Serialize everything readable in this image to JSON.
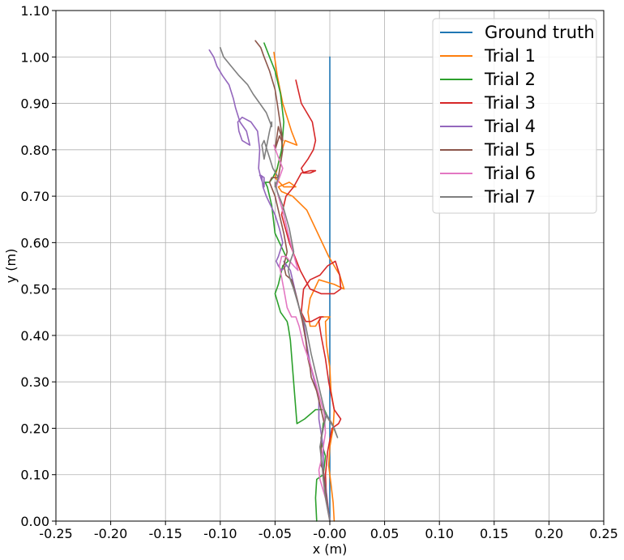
{
  "chart_data": {
    "type": "line",
    "title": "",
    "xlabel": "x (m)",
    "ylabel": "y (m)",
    "xlim": [
      -0.25,
      0.25
    ],
    "ylim": [
      0.0,
      1.1
    ],
    "xticks": [
      -0.25,
      -0.2,
      -0.15,
      -0.1,
      -0.05,
      0.0,
      0.05,
      0.1,
      0.15,
      0.2,
      0.25
    ],
    "xtick_labels": [
      "-0.25",
      "-0.20",
      "-0.15",
      "-0.10",
      "-0.05",
      "-0.00",
      "0.05",
      "0.10",
      "0.15",
      "0.20",
      "0.25"
    ],
    "yticks": [
      0.0,
      0.1,
      0.2,
      0.3,
      0.4,
      0.5,
      0.6,
      0.7,
      0.8,
      0.9,
      1.0,
      1.1
    ],
    "ytick_labels": [
      "0.00",
      "0.10",
      "0.20",
      "0.30",
      "0.40",
      "0.50",
      "0.60",
      "0.70",
      "0.80",
      "0.90",
      "1.00",
      "1.10"
    ],
    "grid": true,
    "legend_position": "top-right",
    "series": [
      {
        "name": "Ground truth",
        "color": "#1f77b4",
        "x": [
          0.0,
          0.0
        ],
        "y": [
          0.0,
          1.0
        ]
      },
      {
        "name": "Trial 1",
        "color": "#ff7f0e",
        "x": [
          0.004,
          0.003,
          0.001,
          -0.001,
          0.0,
          0.003,
          0.004,
          0.001,
          0.0,
          -0.003,
          -0.004,
          0.0,
          -0.008,
          -0.013,
          -0.018,
          -0.02,
          -0.018,
          -0.01,
          0.004,
          0.013,
          0.009,
          -0.001,
          -0.011,
          -0.021,
          -0.034,
          -0.044,
          -0.047,
          -0.037,
          -0.031,
          -0.042,
          -0.05,
          -0.046,
          -0.041,
          -0.03,
          -0.035,
          -0.043,
          -0.048,
          -0.051
        ],
        "y": [
          0.0,
          0.04,
          0.08,
          0.12,
          0.16,
          0.2,
          0.24,
          0.28,
          0.33,
          0.38,
          0.43,
          0.44,
          0.44,
          0.42,
          0.42,
          0.45,
          0.48,
          0.52,
          0.51,
          0.5,
          0.53,
          0.57,
          0.62,
          0.67,
          0.7,
          0.71,
          0.72,
          0.73,
          0.72,
          0.72,
          0.74,
          0.78,
          0.82,
          0.81,
          0.84,
          0.9,
          0.96,
          1.01
        ]
      },
      {
        "name": "Trial 2",
        "color": "#2ca02c",
        "x": [
          -0.012,
          -0.013,
          -0.012,
          -0.006,
          -0.004,
          -0.008,
          -0.006,
          -0.003,
          -0.005,
          -0.013,
          -0.023,
          -0.03,
          -0.032,
          -0.034,
          -0.036,
          -0.038,
          -0.039,
          -0.045,
          -0.05,
          -0.047,
          -0.043,
          -0.038,
          -0.042,
          -0.05,
          -0.053,
          -0.057,
          -0.059,
          -0.055,
          -0.052,
          -0.048,
          -0.044,
          -0.042,
          -0.045,
          -0.05,
          -0.055,
          -0.06
        ],
        "y": [
          0.0,
          0.05,
          0.09,
          0.1,
          0.14,
          0.17,
          0.21,
          0.23,
          0.24,
          0.24,
          0.22,
          0.21,
          0.27,
          0.33,
          0.39,
          0.42,
          0.43,
          0.45,
          0.49,
          0.51,
          0.55,
          0.56,
          0.58,
          0.62,
          0.68,
          0.72,
          0.73,
          0.73,
          0.74,
          0.76,
          0.8,
          0.86,
          0.92,
          0.97,
          1.0,
          1.03
        ]
      },
      {
        "name": "Trial 3",
        "color": "#d62728",
        "x": [
          0.0,
          -0.003,
          -0.004,
          -0.002,
          0.002,
          0.008,
          0.01,
          0.004,
          -0.001,
          -0.004,
          -0.008,
          -0.01,
          -0.008,
          -0.006,
          -0.009,
          -0.017,
          -0.022,
          -0.026,
          -0.024,
          -0.018,
          -0.009,
          -0.002,
          0.005,
          0.009,
          0.01,
          0.004,
          -0.008,
          -0.018,
          -0.027,
          -0.037,
          -0.044,
          -0.04,
          -0.033,
          -0.026,
          -0.018,
          -0.013,
          -0.018,
          -0.024,
          -0.026,
          -0.02,
          -0.015,
          -0.013,
          -0.016,
          -0.021,
          -0.026,
          -0.031
        ],
        "y": [
          0.0,
          0.05,
          0.1,
          0.15,
          0.2,
          0.21,
          0.22,
          0.24,
          0.3,
          0.35,
          0.4,
          0.43,
          0.44,
          0.44,
          0.44,
          0.43,
          0.43,
          0.45,
          0.5,
          0.52,
          0.53,
          0.55,
          0.56,
          0.53,
          0.5,
          0.49,
          0.49,
          0.5,
          0.54,
          0.6,
          0.66,
          0.7,
          0.72,
          0.75,
          0.755,
          0.755,
          0.75,
          0.75,
          0.76,
          0.78,
          0.8,
          0.82,
          0.86,
          0.88,
          0.9,
          0.95
        ]
      },
      {
        "name": "Trial 4",
        "color": "#9467bd",
        "x": [
          0.0,
          -0.003,
          -0.006,
          -0.006,
          -0.01,
          -0.01,
          -0.014,
          -0.018,
          -0.021,
          -0.024,
          -0.028,
          -0.032,
          -0.036,
          -0.042,
          -0.04,
          -0.044,
          -0.047,
          -0.049,
          -0.047,
          -0.043,
          -0.046,
          -0.05,
          -0.054,
          -0.058,
          -0.061,
          -0.062,
          -0.064,
          -0.063,
          -0.06,
          -0.06,
          -0.063,
          -0.065,
          -0.064,
          -0.066,
          -0.072,
          -0.08,
          -0.084,
          -0.083,
          -0.08,
          -0.073,
          -0.076,
          -0.082,
          -0.086,
          -0.088,
          -0.092,
          -0.098,
          -0.103,
          -0.106,
          -0.11
        ],
        "y": [
          0.0,
          0.06,
          0.11,
          0.16,
          0.22,
          0.26,
          0.3,
          0.34,
          0.38,
          0.43,
          0.46,
          0.5,
          0.54,
          0.56,
          0.55,
          0.54,
          0.55,
          0.56,
          0.57,
          0.6,
          0.63,
          0.66,
          0.68,
          0.7,
          0.72,
          0.74,
          0.745,
          0.745,
          0.74,
          0.72,
          0.74,
          0.76,
          0.8,
          0.84,
          0.86,
          0.87,
          0.86,
          0.84,
          0.82,
          0.81,
          0.84,
          0.86,
          0.89,
          0.91,
          0.94,
          0.96,
          0.98,
          1.0,
          1.015
        ]
      },
      {
        "name": "Trial 5",
        "color": "#8c564b",
        "x": [
          0.0,
          -0.003,
          -0.005,
          -0.006,
          -0.008,
          -0.008,
          -0.005,
          -0.008,
          -0.012,
          -0.017,
          -0.018,
          -0.02,
          -0.022,
          -0.025,
          -0.03,
          -0.035,
          -0.04,
          -0.042,
          -0.04,
          -0.039,
          -0.042,
          -0.046,
          -0.05,
          -0.055,
          -0.053,
          -0.047,
          -0.043,
          -0.044,
          -0.046,
          -0.05,
          -0.047,
          -0.043,
          -0.048,
          -0.05,
          -0.055,
          -0.06,
          -0.063,
          -0.068
        ],
        "y": [
          0.0,
          0.05,
          0.09,
          0.11,
          0.12,
          0.18,
          0.21,
          0.24,
          0.28,
          0.31,
          0.33,
          0.35,
          0.39,
          0.43,
          0.48,
          0.52,
          0.53,
          0.55,
          0.57,
          0.58,
          0.62,
          0.66,
          0.7,
          0.73,
          0.74,
          0.74,
          0.8,
          0.82,
          0.83,
          0.8,
          0.85,
          0.82,
          0.9,
          0.93,
          0.97,
          1.0,
          1.02,
          1.035
        ]
      },
      {
        "name": "Trial 6",
        "color": "#e377c2",
        "x": [
          0.0,
          -0.004,
          -0.009,
          -0.01,
          -0.008,
          -0.004,
          -0.005,
          -0.012,
          -0.018,
          -0.024,
          -0.028,
          -0.031,
          -0.035,
          -0.039,
          -0.042,
          -0.046,
          -0.044,
          -0.04,
          -0.033,
          -0.029,
          -0.036,
          -0.042,
          -0.047,
          -0.049,
          -0.046,
          -0.043,
          -0.048,
          -0.051
        ],
        "y": [
          0.0,
          0.05,
          0.09,
          0.11,
          0.13,
          0.19,
          0.23,
          0.29,
          0.34,
          0.38,
          0.42,
          0.44,
          0.44,
          0.46,
          0.5,
          0.55,
          0.57,
          0.57,
          0.55,
          0.54,
          0.6,
          0.66,
          0.7,
          0.72,
          0.74,
          0.76,
          0.79,
          0.81
        ]
      },
      {
        "name": "Trial 7",
        "color": "#7f7f7f",
        "x": [
          0.0,
          -0.004,
          -0.006,
          -0.007,
          -0.009,
          -0.006,
          -0.003,
          0.002,
          0.007,
          0.004,
          -0.004,
          -0.011,
          -0.017,
          -0.022,
          -0.028,
          -0.033,
          -0.036,
          -0.038,
          -0.036,
          -0.033,
          -0.037,
          -0.043,
          -0.048,
          -0.05,
          -0.05,
          -0.047,
          -0.052,
          -0.056,
          -0.06,
          -0.062,
          -0.06,
          -0.055,
          -0.053,
          -0.053,
          -0.058,
          -0.064,
          -0.07,
          -0.075,
          -0.083,
          -0.09,
          -0.097,
          -0.1
        ],
        "y": [
          0.0,
          0.05,
          0.09,
          0.12,
          0.16,
          0.2,
          0.23,
          0.21,
          0.18,
          0.2,
          0.23,
          0.3,
          0.36,
          0.42,
          0.46,
          0.5,
          0.52,
          0.54,
          0.56,
          0.58,
          0.63,
          0.68,
          0.71,
          0.73,
          0.72,
          0.74,
          0.76,
          0.79,
          0.82,
          0.81,
          0.78,
          0.84,
          0.86,
          0.85,
          0.88,
          0.9,
          0.92,
          0.94,
          0.96,
          0.98,
          1.0,
          1.02
        ]
      }
    ]
  }
}
